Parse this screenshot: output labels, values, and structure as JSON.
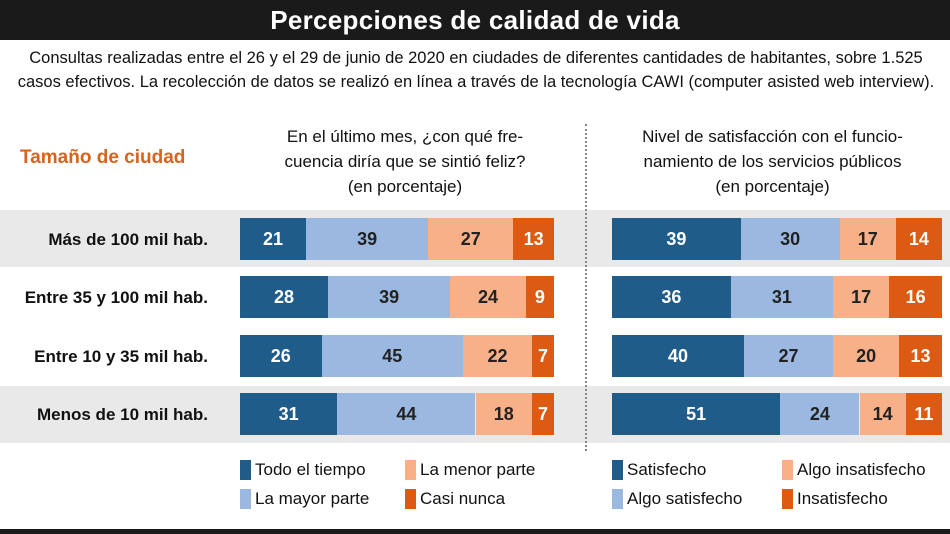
{
  "title": "Percepciones de calidad de vida",
  "subtitle": "Consultas realizadas entre el 26 y el 29 de junio de 2020 en ciudades de diferentes cantidades de habitantes, sobre 1.525 casos efectivos. La recolección de datos se realizó en línea a través de la tecnología CAWI (computer asisted web interview).",
  "row_header": "Tamaño de ciudad",
  "colors": {
    "dark_blue": "#1f5c8a",
    "light_blue": "#9ab8e0",
    "light_orange": "#f7b088",
    "dark_orange": "#dc5a12"
  },
  "chart_data": [
    {
      "type": "bar",
      "orientation": "horizontal",
      "stacked": true,
      "title_lines": [
        "En el último mes, ¿con qué fre-",
        "cuencia diría que se sintió feliz?",
        "(en porcentaje)"
      ],
      "categories": [
        "Más de 100 mil hab.",
        "Entre 35 y 100 mil hab.",
        "Entre 10 y 35 mil hab.",
        "Menos de 10 mil hab."
      ],
      "series": [
        {
          "name": "Todo el tiempo",
          "color": "#1f5c8a",
          "values": [
            21,
            28,
            26,
            31
          ]
        },
        {
          "name": "La mayor parte",
          "color": "#9ab8e0",
          "values": [
            39,
            39,
            45,
            44
          ]
        },
        {
          "name": "La menor parte",
          "color": "#f7b088",
          "values": [
            27,
            24,
            22,
            18
          ]
        },
        {
          "name": "Casi nunca",
          "color": "#dc5a12",
          "values": [
            13,
            9,
            7,
            7
          ]
        }
      ],
      "legend_order": [
        "Todo el tiempo",
        "La menor parte",
        "La mayor parte",
        "Casi nunca"
      ]
    },
    {
      "type": "bar",
      "orientation": "horizontal",
      "stacked": true,
      "title_lines": [
        "Nivel de satisfacción con el funcio-",
        "namiento de los servicios públicos",
        "(en porcentaje)"
      ],
      "categories": [
        "Más de 100 mil hab.",
        "Entre 35 y 100 mil hab.",
        "Entre 10 y 35 mil hab.",
        "Menos de 10 mil hab."
      ],
      "series": [
        {
          "name": "Satisfecho",
          "color": "#1f5c8a",
          "values": [
            39,
            36,
            40,
            51
          ]
        },
        {
          "name": "Algo satisfecho",
          "color": "#9ab8e0",
          "values": [
            30,
            31,
            27,
            24
          ]
        },
        {
          "name": "Algo insatisfecho",
          "color": "#f7b088",
          "values": [
            17,
            17,
            20,
            14
          ]
        },
        {
          "name": "Insatisfecho",
          "color": "#dc5a12",
          "values": [
            14,
            16,
            13,
            11
          ]
        }
      ],
      "legend_order": [
        "Satisfecho",
        "Algo insatisfecho",
        "Algo satisfecho",
        "Insatisfecho"
      ]
    }
  ]
}
